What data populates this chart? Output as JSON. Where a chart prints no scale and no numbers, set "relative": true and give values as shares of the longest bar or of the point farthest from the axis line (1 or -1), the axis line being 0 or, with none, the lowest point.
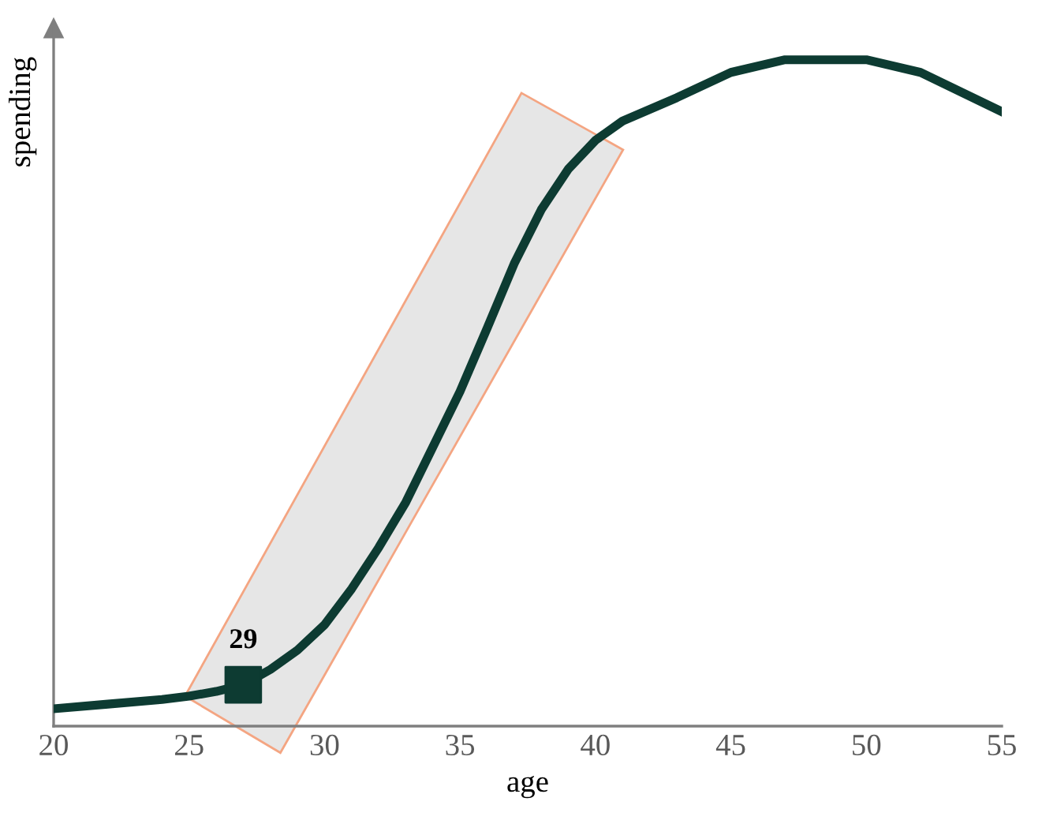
{
  "chart_data": {
    "type": "line",
    "xlabel": "age",
    "ylabel": "spending",
    "relative": true,
    "tick_labels": "x",
    "grid": false,
    "xlim": [
      20,
      55
    ],
    "xticks": [
      20,
      25,
      30,
      35,
      40,
      45,
      50,
      55
    ],
    "series": [
      {
        "color": "#0d3b32",
        "marker": "none",
        "line_style": "solid",
        "x": [
          20,
          22,
          24,
          25,
          26,
          27,
          28,
          29,
          30,
          31,
          32,
          33,
          34,
          35,
          36,
          37,
          38,
          39,
          40,
          41,
          43,
          45,
          47,
          50,
          52,
          55
        ],
        "values": [
          0.026,
          0.033,
          0.04,
          0.045,
          0.052,
          0.062,
          0.085,
          0.114,
          0.152,
          0.206,
          0.268,
          0.336,
          0.419,
          0.502,
          0.597,
          0.694,
          0.775,
          0.836,
          0.879,
          0.908,
          0.943,
          0.981,
          1.0,
          1.0,
          0.981,
          0.922
        ]
      },
      {
        "type": "scatter",
        "color": "#0d3b32",
        "marker": "square",
        "x": [
          27
        ],
        "values": [
          0.062
        ]
      }
    ],
    "annotations": [
      {
        "text": "29",
        "x": 27,
        "y": 0.062
      }
    ]
  }
}
